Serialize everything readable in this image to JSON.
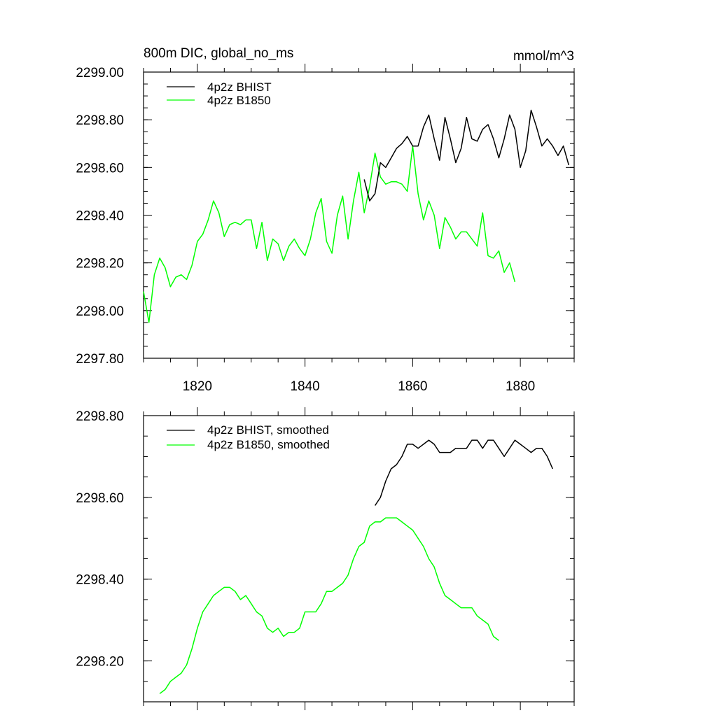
{
  "chart_data": [
    {
      "type": "line",
      "title": "800m DIC, global_no_ms",
      "units": "mmol/m^3",
      "xlim": [
        1810,
        1890
      ],
      "ylim": [
        2297.8,
        2299.0
      ],
      "xticks": [
        1820,
        1840,
        1860,
        1880
      ],
      "xtick_labels": [
        "1820",
        "1840",
        "1860",
        "1880"
      ],
      "yticks": [
        2297.8,
        2298.0,
        2298.2,
        2298.4,
        2298.6,
        2298.8,
        2299.0
      ],
      "ytick_labels": [
        "2297.80",
        "2298.00",
        "2298.20",
        "2298.40",
        "2298.60",
        "2298.80",
        "2299.00"
      ],
      "legend_position": "top-left",
      "series": [
        {
          "name": "4p2z BHIST",
          "color": "#000000",
          "x": [
            1851,
            1852,
            1853,
            1854,
            1855,
            1856,
            1857,
            1858,
            1859,
            1860,
            1861,
            1862,
            1863,
            1864,
            1865,
            1866,
            1867,
            1868,
            1869,
            1870,
            1871,
            1872,
            1873,
            1874,
            1875,
            1876,
            1877,
            1878,
            1879,
            1880,
            1881,
            1882,
            1883,
            1884,
            1885,
            1886,
            1887,
            1888,
            1889
          ],
          "y": [
            2298.55,
            2298.46,
            2298.49,
            2298.62,
            2298.6,
            2298.64,
            2298.68,
            2298.7,
            2298.73,
            2298.69,
            2298.69,
            2298.77,
            2298.82,
            2298.72,
            2298.63,
            2298.81,
            2298.72,
            2298.62,
            2298.68,
            2298.81,
            2298.72,
            2298.71,
            2298.76,
            2298.78,
            2298.72,
            2298.64,
            2298.72,
            2298.82,
            2298.76,
            2298.6,
            2298.67,
            2298.84,
            2298.77,
            2298.69,
            2298.72,
            2298.69,
            2298.65,
            2298.69,
            2298.61
          ]
        },
        {
          "name": "4p2z B1850",
          "color": "#00ff00",
          "x": [
            1810,
            1811,
            1812,
            1813,
            1814,
            1815,
            1816,
            1817,
            1818,
            1819,
            1820,
            1821,
            1822,
            1823,
            1824,
            1825,
            1826,
            1827,
            1828,
            1829,
            1830,
            1831,
            1832,
            1833,
            1834,
            1835,
            1836,
            1837,
            1838,
            1839,
            1840,
            1841,
            1842,
            1843,
            1844,
            1845,
            1846,
            1847,
            1848,
            1849,
            1850,
            1851,
            1852,
            1853,
            1854,
            1855,
            1856,
            1857,
            1858,
            1859,
            1860,
            1861,
            1862,
            1863,
            1864,
            1865,
            1866,
            1867,
            1868,
            1869,
            1870,
            1871,
            1872,
            1873,
            1874,
            1875,
            1876,
            1877,
            1878,
            1879
          ],
          "y": [
            2298.08,
            2297.95,
            2298.15,
            2298.22,
            2298.18,
            2298.1,
            2298.14,
            2298.15,
            2298.13,
            2298.19,
            2298.29,
            2298.32,
            2298.38,
            2298.46,
            2298.41,
            2298.31,
            2298.36,
            2298.37,
            2298.36,
            2298.38,
            2298.38,
            2298.26,
            2298.37,
            2298.21,
            2298.3,
            2298.28,
            2298.21,
            2298.27,
            2298.3,
            2298.26,
            2298.23,
            2298.3,
            2298.41,
            2298.47,
            2298.29,
            2298.24,
            2298.4,
            2298.48,
            2298.3,
            2298.46,
            2298.58,
            2298.41,
            2298.52,
            2298.66,
            2298.56,
            2298.53,
            2298.54,
            2298.54,
            2298.53,
            2298.5,
            2298.69,
            2298.49,
            2298.38,
            2298.46,
            2298.4,
            2298.26,
            2298.39,
            2298.35,
            2298.3,
            2298.33,
            2298.33,
            2298.3,
            2298.27,
            2298.41,
            2298.23,
            2298.22,
            2298.25,
            2298.16,
            2298.2,
            2298.12
          ]
        }
      ]
    },
    {
      "type": "line",
      "xlim": [
        1810,
        1890
      ],
      "ylim": [
        2298.1,
        2298.8
      ],
      "xticks": [
        1820,
        1840,
        1860,
        1880
      ],
      "yticks": [
        2298.2,
        2298.4,
        2298.6,
        2298.8
      ],
      "ytick_labels": [
        "2298.20",
        "2298.40",
        "2298.60",
        "2298.80"
      ],
      "legend_position": "top-left",
      "series": [
        {
          "name": "4p2z BHIST, smoothed",
          "color": "#000000",
          "x": [
            1853,
            1854,
            1855,
            1856,
            1857,
            1858,
            1859,
            1860,
            1861,
            1862,
            1863,
            1864,
            1865,
            1866,
            1867,
            1868,
            1869,
            1870,
            1871,
            1872,
            1873,
            1874,
            1875,
            1876,
            1877,
            1878,
            1879,
            1880,
            1881,
            1882,
            1883,
            1884,
            1885,
            1886
          ],
          "y": [
            2298.58,
            2298.6,
            2298.64,
            2298.67,
            2298.68,
            2298.7,
            2298.73,
            2298.73,
            2298.72,
            2298.73,
            2298.74,
            2298.73,
            2298.71,
            2298.71,
            2298.71,
            2298.72,
            2298.72,
            2298.72,
            2298.74,
            2298.74,
            2298.72,
            2298.74,
            2298.74,
            2298.72,
            2298.7,
            2298.72,
            2298.74,
            2298.73,
            2298.72,
            2298.71,
            2298.72,
            2298.72,
            2298.7,
            2298.67
          ]
        },
        {
          "name": "4p2z B1850, smoothed",
          "color": "#00ff00",
          "x": [
            1813,
            1814,
            1815,
            1816,
            1817,
            1818,
            1819,
            1820,
            1821,
            1822,
            1823,
            1824,
            1825,
            1826,
            1827,
            1828,
            1829,
            1830,
            1831,
            1832,
            1833,
            1834,
            1835,
            1836,
            1837,
            1838,
            1839,
            1840,
            1841,
            1842,
            1843,
            1844,
            1845,
            1846,
            1847,
            1848,
            1849,
            1850,
            1851,
            1852,
            1853,
            1854,
            1855,
            1856,
            1857,
            1858,
            1859,
            1860,
            1861,
            1862,
            1863,
            1864,
            1865,
            1866,
            1867,
            1868,
            1869,
            1870,
            1871,
            1872,
            1873,
            1874,
            1875,
            1876
          ],
          "y": [
            2298.12,
            2298.13,
            2298.15,
            2298.16,
            2298.17,
            2298.19,
            2298.23,
            2298.28,
            2298.32,
            2298.34,
            2298.36,
            2298.37,
            2298.38,
            2298.38,
            2298.37,
            2298.35,
            2298.36,
            2298.34,
            2298.32,
            2298.31,
            2298.28,
            2298.27,
            2298.28,
            2298.26,
            2298.27,
            2298.27,
            2298.28,
            2298.32,
            2298.32,
            2298.32,
            2298.34,
            2298.37,
            2298.37,
            2298.38,
            2298.39,
            2298.41,
            2298.45,
            2298.48,
            2298.49,
            2298.53,
            2298.54,
            2298.54,
            2298.55,
            2298.55,
            2298.55,
            2298.54,
            2298.53,
            2298.52,
            2298.5,
            2298.48,
            2298.45,
            2298.43,
            2298.39,
            2298.36,
            2298.35,
            2298.34,
            2298.33,
            2298.33,
            2298.33,
            2298.31,
            2298.3,
            2298.29,
            2298.26,
            2298.25
          ]
        }
      ]
    }
  ]
}
